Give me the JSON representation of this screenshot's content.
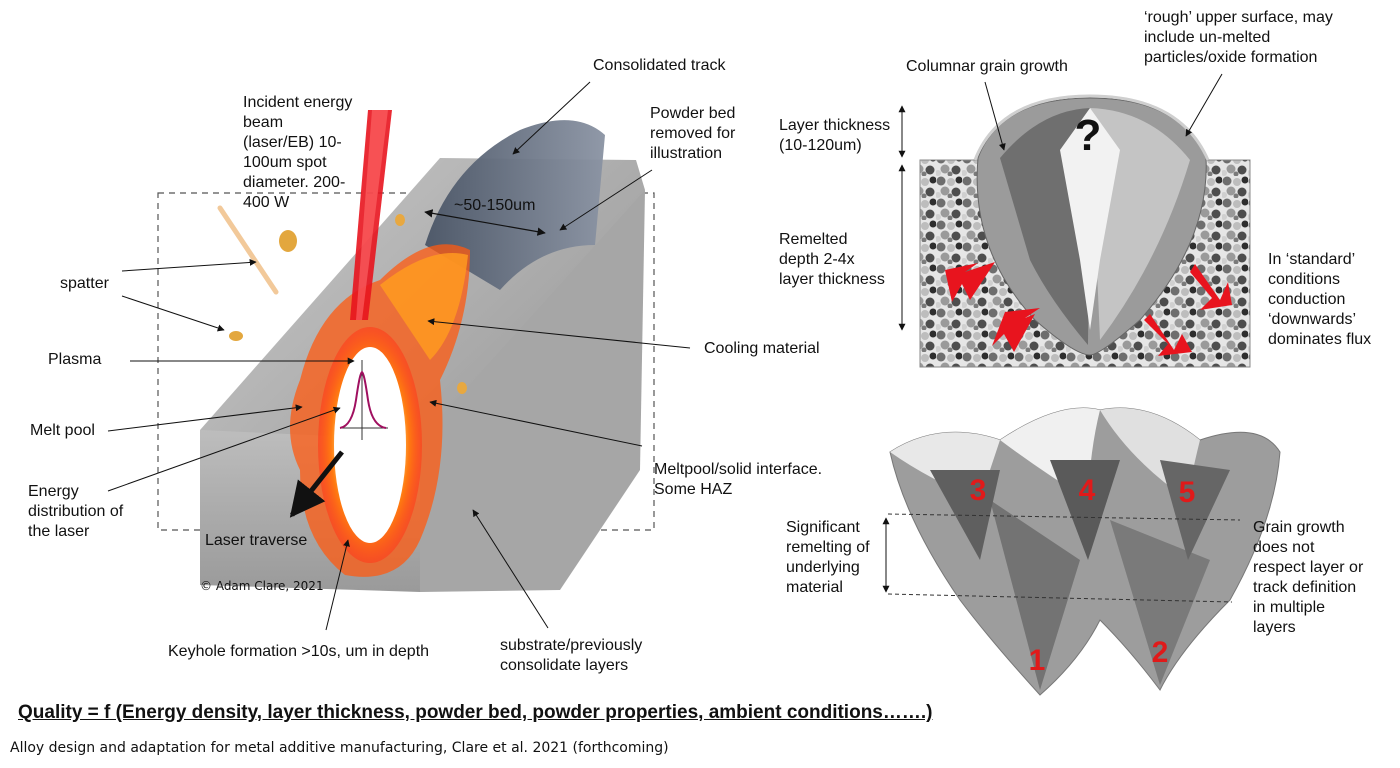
{
  "labels": {
    "consolidated_track": "Consolidated track",
    "incident_beam": "Incident energy\nbeam\n(laser/EB) 10-\n100um spot\ndiameter. 200-\n400 W",
    "powder_bed": "Powder bed\nremoved for\nillustration",
    "width": "~50-150um",
    "spatter": "spatter",
    "plasma": "Plasma",
    "cooling": "Cooling material",
    "melt_pool": "Melt pool",
    "energy_dist": "Energy\ndistribution of\nthe laser",
    "interface": "Meltpool/solid interface.\nSome HAZ",
    "laser_traverse": "Laser traverse",
    "copyright": "© Adam Clare, 2021",
    "keyhole": "Keyhole formation >10s, um in depth",
    "substrate": "substrate/previously\nconsolidate layers",
    "columnar": "Columnar grain growth",
    "rough": "‘rough’ upper surface, may\ninclude un-melted\nparticles/oxide formation",
    "layer_thickness": "Layer thickness\n(10-120um)",
    "remelted": "Remelted\ndepth 2-4x\nlayer thickness",
    "standard": "In ‘standard’\nconditions\nconduction\n‘downwards’\ndominates flux",
    "significant": "Significant\nremelting of\nunderlying\nmaterial",
    "grain_growth": "Grain growth\ndoes not\nrespect layer or\ntrack definition\nin multiple\nlayers"
  },
  "question_mark": "?",
  "track_numbers": [
    "3",
    "4",
    "5",
    "1",
    "2"
  ],
  "quality": "Quality  = f (Energy density, layer thickness, powder bed, powder properties, ambient conditions…….)",
  "citation": "Alloy design and adaptation for metal additive manufacturing, Clare et al. 2021 (forthcoming)",
  "colors": {
    "beam": "#e8141e",
    "melt": "#ff6a00",
    "arrow": "#e8141e",
    "numbers": "#e01a1a"
  }
}
